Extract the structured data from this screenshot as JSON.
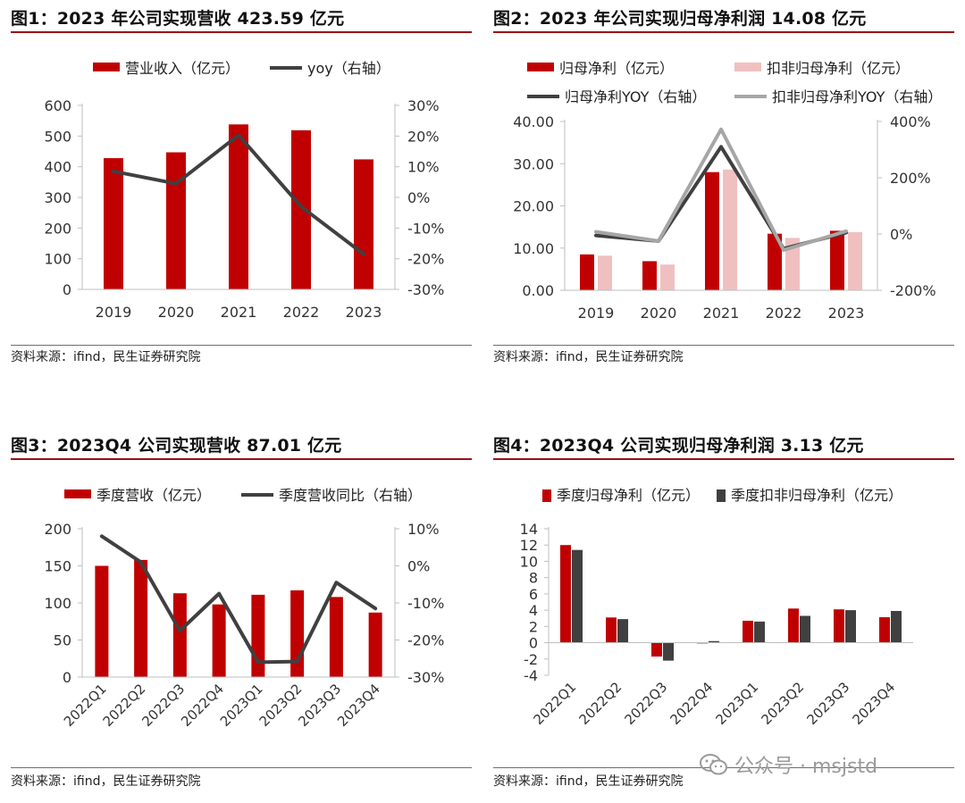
{
  "colors": {
    "red": "#c00000",
    "pink": "#f0c0c0",
    "dark": "#404040",
    "gray": "#a6a6a6",
    "accent_line": "#9b0f16"
  },
  "source_text": "资料来源：ifind，民生证券研究院",
  "watermark": {
    "text": "公众号 · msjstd",
    "icon": "wechat-icon"
  },
  "chart_data": [
    {
      "id": "fig1",
      "type": "bar",
      "title": "图1：2023 年公司实现营收 423.59 亿元",
      "categories": [
        "2019",
        "2020",
        "2021",
        "2022",
        "2023"
      ],
      "series": [
        {
          "name": "营业收入（亿元）",
          "type": "bar",
          "axis": "left",
          "color": "#c00000",
          "values": [
            428,
            447,
            538,
            519,
            424
          ]
        },
        {
          "name": "yoy（右轴）",
          "type": "line",
          "axis": "right",
          "color": "#404040",
          "values": [
            8.5,
            4.5,
            20.3,
            -3.0,
            -18.5
          ]
        }
      ],
      "y_left": {
        "min": 0,
        "max": 600,
        "ticks": [
          0,
          100,
          200,
          300,
          400,
          500,
          600
        ],
        "tick_labels": [
          "0",
          "100",
          "200",
          "300",
          "400",
          "500",
          "600"
        ]
      },
      "y_right": {
        "min": -30,
        "max": 30,
        "ticks": [
          -30,
          -20,
          -10,
          0,
          10,
          20,
          30
        ],
        "tick_labels": [
          "-30%",
          "-20%",
          "-10%",
          "0%",
          "10%",
          "20%",
          "30%"
        ]
      },
      "source": "资料来源：ifind，民生证券研究院"
    },
    {
      "id": "fig2",
      "type": "bar",
      "title": "图2：2023 年公司实现归母净利润 14.08 亿元",
      "categories": [
        "2019",
        "2020",
        "2021",
        "2022",
        "2023"
      ],
      "series": [
        {
          "name": "归母净利（亿元）",
          "type": "bar",
          "axis": "left",
          "color": "#c00000",
          "values": [
            8.5,
            6.9,
            28.0,
            13.4,
            14.1
          ]
        },
        {
          "name": "扣非归母净利（亿元）",
          "type": "bar",
          "axis": "left",
          "color": "#f0c0c0",
          "values": [
            8.2,
            6.1,
            28.6,
            12.4,
            13.8
          ]
        },
        {
          "name": "归母净利YOY（右轴）",
          "type": "line",
          "axis": "right",
          "color": "#404040",
          "values": [
            -5,
            -25,
            310,
            -52,
            5
          ]
        },
        {
          "name": "扣非归母净利YOY（右轴）",
          "type": "line",
          "axis": "right",
          "color": "#a6a6a6",
          "values": [
            8,
            -25,
            372,
            -57,
            10
          ]
        }
      ],
      "y_left": {
        "min": 0,
        "max": 40,
        "ticks": [
          0,
          10,
          20,
          30,
          40
        ],
        "tick_labels": [
          "0.00",
          "10.00",
          "20.00",
          "30.00",
          "40.00"
        ]
      },
      "y_right": {
        "min": -200,
        "max": 400,
        "ticks": [
          -200,
          0,
          200,
          400
        ],
        "tick_labels": [
          "-200%",
          "0%",
          "200%",
          "400%"
        ]
      },
      "source": "资料来源：ifind，民生证券研究院"
    },
    {
      "id": "fig3",
      "type": "bar",
      "title": "图3：2023Q4 公司实现营收 87.01 亿元",
      "categories": [
        "2022Q1",
        "2022Q2",
        "2022Q3",
        "2022Q4",
        "2023Q1",
        "2023Q2",
        "2023Q3",
        "2023Q4"
      ],
      "series": [
        {
          "name": "季度营收（亿元）",
          "type": "bar",
          "axis": "left",
          "color": "#c00000",
          "values": [
            150,
            158,
            113,
            98,
            111,
            117,
            108,
            87
          ]
        },
        {
          "name": "季度营收同比（右轴）",
          "type": "line",
          "axis": "right",
          "color": "#404040",
          "values": [
            8,
            1,
            -17.5,
            -7.5,
            -26,
            -25.8,
            -4.5,
            -11.5
          ]
        }
      ],
      "y_left": {
        "min": 0,
        "max": 200,
        "ticks": [
          0,
          50,
          100,
          150,
          200
        ],
        "tick_labels": [
          "0",
          "50",
          "100",
          "150",
          "200"
        ]
      },
      "y_right": {
        "min": -30,
        "max": 10,
        "ticks": [
          -30,
          -20,
          -10,
          0,
          10
        ],
        "tick_labels": [
          "-30%",
          "-20%",
          "-10%",
          "0%",
          "10%"
        ]
      },
      "source": "资料来源：ifind，民生证券研究院"
    },
    {
      "id": "fig4",
      "type": "bar",
      "title": "图4：2023Q4 公司实现归母净利润 3.13 亿元",
      "categories": [
        "2022Q1",
        "2022Q2",
        "2022Q3",
        "2022Q4",
        "2023Q1",
        "2023Q2",
        "2023Q3",
        "2023Q4"
      ],
      "series": [
        {
          "name": "季度归母净利（亿元）",
          "type": "bar",
          "axis": "left",
          "color": "#c00000",
          "values": [
            12.0,
            3.1,
            -1.7,
            0.0,
            2.7,
            4.2,
            4.1,
            3.13
          ]
        },
        {
          "name": "季度扣非归母净利（亿元）",
          "type": "bar",
          "axis": "left",
          "color": "#404040",
          "values": [
            11.4,
            2.9,
            -2.2,
            0.2,
            2.6,
            3.3,
            4.0,
            3.9
          ]
        }
      ],
      "y_left": {
        "min": -4,
        "max": 14,
        "ticks": [
          -4,
          -2,
          0,
          2,
          4,
          6,
          8,
          10,
          12,
          14
        ],
        "tick_labels": [
          "-4",
          "-2",
          "0",
          "2",
          "4",
          "6",
          "8",
          "10",
          "12",
          "14"
        ]
      },
      "source": "资料来源：ifind，民生证券研究院"
    }
  ]
}
